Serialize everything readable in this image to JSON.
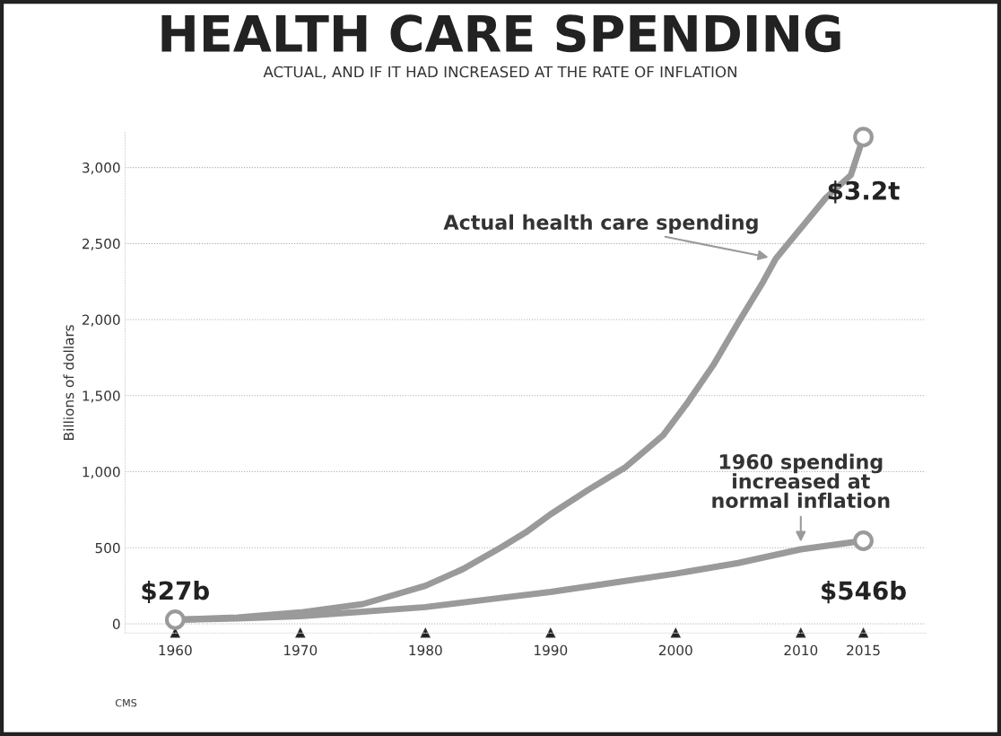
{
  "chart_data": {
    "type": "line",
    "title": "HEALTH CARE SPENDING",
    "subtitle": "ACTUAL, AND IF IT HAD INCREASED AT THE RATE OF INFLATION",
    "ylabel": "Billions of dollars",
    "series": [
      {
        "name": "Actual health care spending",
        "color": "#9a9a9a",
        "x": [
          1960,
          1965,
          1970,
          1975,
          1980,
          1983,
          1986,
          1988,
          1990,
          1993,
          1996,
          1999,
          2001,
          2003,
          2005,
          2007,
          2008,
          2010,
          2012,
          2014,
          2015
        ],
        "values": [
          27,
          42,
          75,
          130,
          250,
          360,
          500,
          600,
          720,
          880,
          1030,
          1240,
          1460,
          1700,
          1980,
          2250,
          2400,
          2600,
          2800,
          2950,
          3200
        ]
      },
      {
        "name": "1960 spending\nincreased at\nnormal inflation",
        "color": "#9a9a9a",
        "x": [
          1960,
          1965,
          1970,
          1975,
          1980,
          1985,
          1990,
          1995,
          2000,
          2005,
          2010,
          2015
        ],
        "values": [
          27,
          35,
          50,
          80,
          110,
          160,
          210,
          270,
          330,
          400,
          490,
          546
        ]
      },
      {
        "type": "scatter",
        "marker": "circle",
        "color": "#9a9a9a",
        "x": [
          1960,
          2015,
          2015
        ],
        "values": [
          27,
          3200,
          546
        ]
      }
    ],
    "xlim": [
      1956,
      2020
    ],
    "xticks": [
      1960,
      1970,
      1980,
      1990,
      2000,
      2010,
      2015
    ],
    "ylim": [
      -60,
      3230
    ],
    "yticks": [
      {
        "value": 0,
        "label": "0"
      },
      {
        "value": 500,
        "label": "500"
      },
      {
        "value": 1000,
        "label": "1,000"
      },
      {
        "value": 1500,
        "label": "1,500"
      },
      {
        "value": 2000,
        "label": "2,000"
      },
      {
        "value": 2500,
        "label": "2,500"
      },
      {
        "value": 3000,
        "label": "3,000"
      }
    ],
    "grid": "y",
    "annotations": [
      "$27b",
      "$3.2t",
      "$546b",
      "CMS"
    ]
  }
}
